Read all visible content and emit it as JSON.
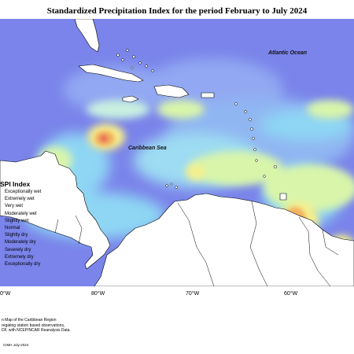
{
  "title": "Standardized Precipitation Index for the period February to July 2024",
  "labels": {
    "ocean": "Atlantic Ocean",
    "sea": "Caribbean Sea"
  },
  "legend": {
    "title": "SPI Index",
    "items": [
      "Exceptionally wet",
      "Extremely wet",
      "Very wet",
      "Moderately wet",
      "Slightly wet",
      "Normal",
      "Slightly dry",
      "Moderately dry",
      "Severely dry",
      "Extremely dry",
      "Exceptionally dry"
    ]
  },
  "longitudes": [
    "0°W",
    "80°W",
    "70°W",
    "60°W"
  ],
  "footnote": [
    "n Map of the Caribbean Region",
    "regating station based observations,",
    "DF, with NCEP/NCAR Reanalysis Data."
  ],
  "credit": "CIMH July-2024",
  "colors": {
    "wet_strong": "#6a72e6",
    "wet": "#8fa6f0",
    "wet_light": "#88d4f4",
    "normal": "#d6f5a8",
    "dry_light": "#f7f08c",
    "dry": "#f2b060",
    "dry_strong": "#e65a55"
  }
}
